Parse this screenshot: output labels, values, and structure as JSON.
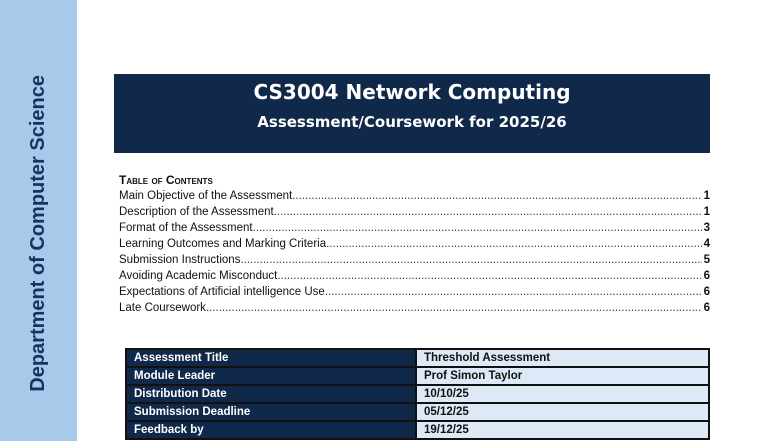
{
  "sidebar": {
    "text": "Department of Computer Science"
  },
  "header": {
    "title": "CS3004 Network Computing",
    "subtitle": "Assessment/Coursework for 2025/26"
  },
  "toc": {
    "heading": "Table of Contents",
    "items": [
      {
        "label": "Main Objective of the Assessment",
        "page": "1"
      },
      {
        "label": "Description of the Assessment",
        "page": "1"
      },
      {
        "label": "Format of the Assessment",
        "page": "3"
      },
      {
        "label": "Learning Outcomes and Marking Criteria",
        "page": "4"
      },
      {
        "label": "Submission Instructions",
        "page": "5"
      },
      {
        "label": "Avoiding Academic Misconduct",
        "page": "6"
      },
      {
        "label": "Expectations of Artificial intelligence Use",
        "page": "6"
      },
      {
        "label": "Late Coursework",
        "page": "6"
      }
    ]
  },
  "info": [
    {
      "key": "Assessment Title",
      "value": "Threshold Assessment"
    },
    {
      "key": "Module Leader",
      "value": "Prof Simon Taylor"
    },
    {
      "key": "Distribution Date",
      "value": "10/10/25"
    },
    {
      "key": "Submission Deadline",
      "value": "05/12/25"
    },
    {
      "key": "Feedback by",
      "value": "19/12/25"
    }
  ],
  "colors": {
    "navy": "#10294a",
    "sidebar": "#a9c9eb",
    "cell": "#dde9f6"
  }
}
